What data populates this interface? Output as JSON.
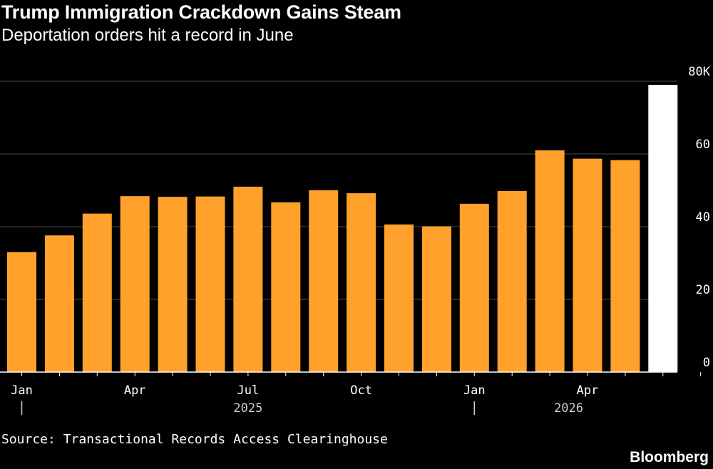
{
  "chart_data": {
    "type": "bar",
    "title": "Trump Immigration Crackdown Gains Steam",
    "subtitle": "Deportation orders hit a record in June",
    "categories": [
      "Jan 2025",
      "Feb 2025",
      "Mar 2025",
      "Apr 2025",
      "May 2025",
      "Jun 2025",
      "Jul 2025",
      "Aug 2025",
      "Sep 2025",
      "Oct 2025",
      "Nov 2025",
      "Dec 2025",
      "Jan 2026",
      "Feb 2026",
      "Mar 2026",
      "Apr 2026",
      "May 2026",
      "Jun 2026"
    ],
    "values": [
      33,
      37.6,
      43.6,
      48.4,
      48.2,
      48.3,
      51,
      46.7,
      50,
      49.2,
      40.6,
      40.1,
      46.3,
      49.8,
      61,
      58.7,
      58.3,
      79
    ],
    "highlight_index": 17,
    "ylim": [
      0,
      80
    ],
    "yticks": [
      0,
      20,
      40,
      60,
      80
    ],
    "ytick_labels": [
      "0",
      "20",
      "40",
      "60",
      "80K"
    ],
    "xtick_labels": [
      {
        "index": 0,
        "label": "Jan"
      },
      {
        "index": 3,
        "label": "Apr"
      },
      {
        "index": 6,
        "label": "Jul"
      },
      {
        "index": 9,
        "label": "Oct"
      },
      {
        "index": 12,
        "label": "Jan"
      },
      {
        "index": 15,
        "label": "Apr"
      }
    ],
    "year_labels": [
      {
        "label": "2025",
        "marker_index": 0,
        "center_index": 6
      },
      {
        "label": "2026",
        "marker_index": 12,
        "center_index": 14.5
      }
    ],
    "grid": true,
    "colors": {
      "bar": "#ffa12b",
      "highlight": "#ffffff",
      "grid": "#4a4a4a",
      "axis": "#ffffff"
    }
  },
  "source": "Source: Transactional Records Access Clearinghouse",
  "brand": "Bloomberg"
}
